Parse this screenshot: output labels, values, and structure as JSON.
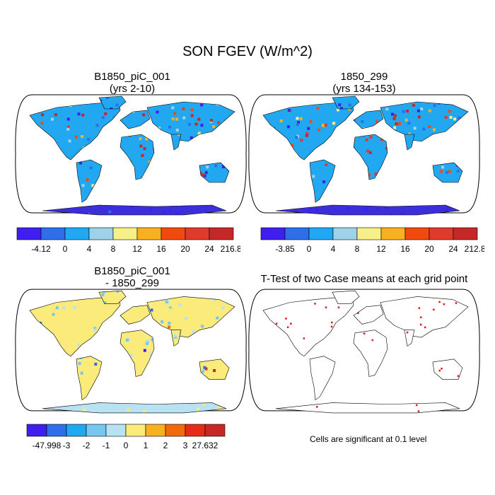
{
  "figure": {
    "title": "SON FGEV (W/m^2)",
    "colors": {
      "ocean": "#ffffff",
      "map_border": "#000000",
      "antarctica": "#3b2fd9",
      "significance": "#e41a1c"
    }
  },
  "panels": [
    {
      "id": "case1",
      "title_line1": "B1850_piC_001",
      "title_line2": "(yrs 2-10)",
      "colorbar": {
        "labels": [
          "-4.12",
          "0",
          "4",
          "8",
          "12",
          "16",
          "20",
          "24",
          "216.84"
        ],
        "colors": [
          "#3f1ff0",
          "#2f6ee8",
          "#21a8f0",
          "#9ed2e8",
          "#f7f08a",
          "#f7b020",
          "#f04a10",
          "#e03a2c",
          "#c62828"
        ]
      }
    },
    {
      "id": "case2",
      "title_line1": "1850_299",
      "title_line2": "(yrs 134-153)",
      "colorbar": {
        "labels": [
          "-3.85",
          "0",
          "4",
          "8",
          "12",
          "16",
          "20",
          "24",
          "212.83"
        ],
        "colors": [
          "#3f1ff0",
          "#2f6ee8",
          "#21a8f0",
          "#9ed2e8",
          "#f7f08a",
          "#f7b020",
          "#f04a10",
          "#e03a2c",
          "#c62828"
        ]
      }
    },
    {
      "id": "diff",
      "title_line1": "B1850_piC_001",
      "title_line2": "- 1850_299",
      "colorbar": {
        "labels": [
          "-47.998",
          "-3",
          "-2",
          "-1",
          "0",
          "1",
          "2",
          "3",
          "27.632"
        ],
        "colors": [
          "#3f1ff0",
          "#2f6ee8",
          "#21a8f0",
          "#74c8f0",
          "#b8e2f2",
          "#fbeb7a",
          "#f7b020",
          "#f06a10",
          "#e82a18",
          "#c62828"
        ]
      }
    },
    {
      "id": "ttest",
      "title_line1": "T-Test of two Case means at each grid point",
      "footnote": "Cells are significant at 0.1 level"
    }
  ]
}
